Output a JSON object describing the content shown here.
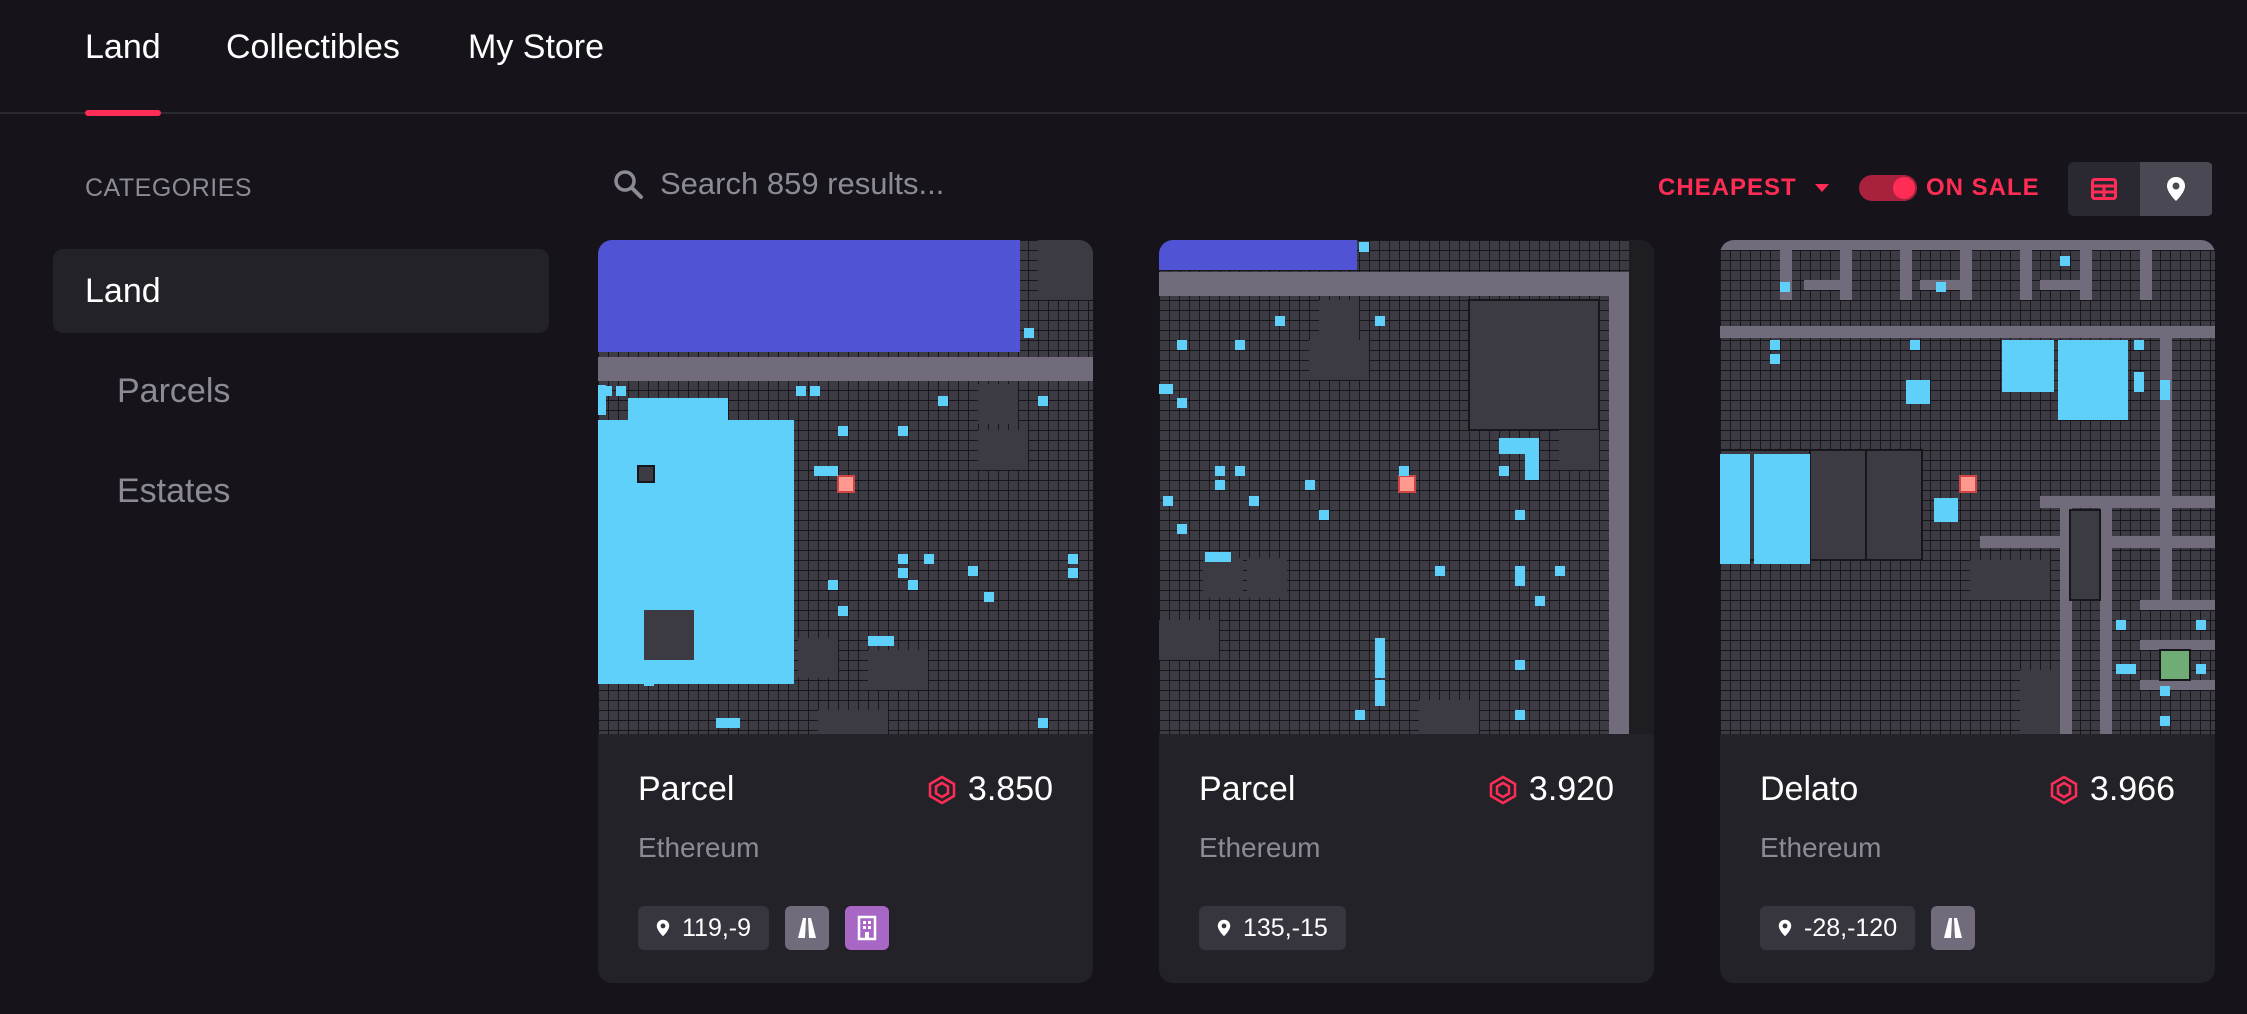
{
  "nav": {
    "tabs": [
      {
        "label": "Land",
        "active": true
      },
      {
        "label": "Collectibles",
        "active": false
      },
      {
        "label": "My Store",
        "active": false
      }
    ]
  },
  "sidebar": {
    "title": "CATEGORIES",
    "items": [
      {
        "label": "Land",
        "active": true
      },
      {
        "label": "Parcels",
        "active": false
      },
      {
        "label": "Estates",
        "active": false
      }
    ]
  },
  "toolbar": {
    "search_placeholder": "Search 859 results...",
    "search_value": "",
    "sort_label": "CHEAPEST",
    "on_sale_label": "ON SALE",
    "on_sale_enabled": true,
    "view_mode": "grid"
  },
  "colors": {
    "accent": "#ff2d55",
    "background": "#16141a",
    "card": "#242229",
    "parcel_owned": "#5ed0fa",
    "district": "#5054d4",
    "road": "#716b7c",
    "plaza": "#a867c4",
    "selected": "#ff9990",
    "park": "#70ac76"
  },
  "cards": [
    {
      "name": "Parcel",
      "price": "3.850",
      "network": "Ethereum",
      "coords": "119,-9",
      "badges": [
        "road-icon",
        "building-icon"
      ]
    },
    {
      "name": "Parcel",
      "price": "3.920",
      "network": "Ethereum",
      "coords": "135,-15",
      "badges": []
    },
    {
      "name": "Delato",
      "price": "3.966",
      "network": "Ethereum",
      "coords": "-28,-120",
      "badges": [
        "road-icon"
      ]
    }
  ]
}
